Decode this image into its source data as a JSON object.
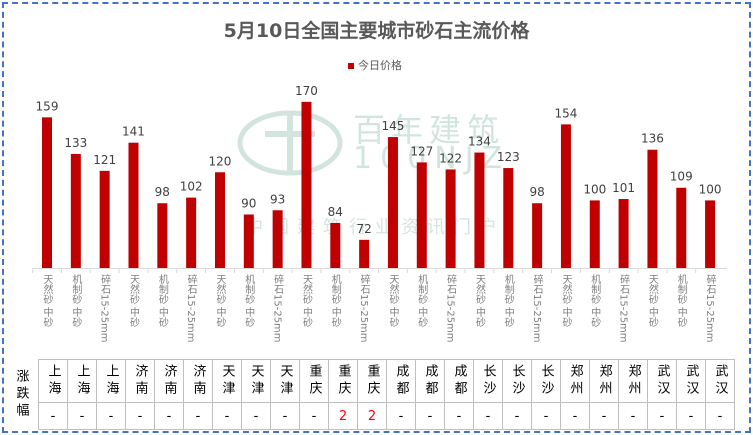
{
  "chart_data": {
    "type": "bar",
    "title": "5月10日全国主要城市砂石主流价格",
    "legend": "今日价格",
    "legend_position": "top",
    "bar_color": "#c00000",
    "categories": [
      "天然砂 中砂",
      "机制砂 中砂",
      "碎石15-25mm",
      "天然砂 中砂",
      "机制砂 中砂",
      "碎石15-25mm",
      "天然砂 中砂",
      "机制砂 中砂",
      "碎石15-25mm",
      "天然砂 中砂",
      "机制砂 中砂",
      "碎石15-25mm",
      "天然砂 中砂",
      "机制砂 中砂",
      "碎石15-25mm",
      "天然砂 中砂",
      "机制砂 中砂",
      "碎石15-25mm",
      "天然砂 中砂",
      "机制砂 中砂",
      "碎石15-25mm",
      "天然砂 中砂",
      "机制砂 中砂",
      "碎石15-25mm"
    ],
    "values": [
      159,
      133,
      121,
      141,
      98,
      102,
      120,
      90,
      93,
      170,
      84,
      72,
      145,
      127,
      122,
      134,
      123,
      98,
      154,
      100,
      101,
      136,
      109,
      100
    ],
    "ylim": [
      52,
      175
    ],
    "grid": false
  },
  "table": {
    "row_header": "涨跌幅",
    "cities": [
      "上海",
      "上海",
      "上海",
      "济南",
      "济南",
      "济南",
      "天津",
      "天津",
      "天津",
      "重庆",
      "重庆",
      "重庆",
      "成都",
      "成都",
      "成都",
      "长沙",
      "长沙",
      "长沙",
      "郑州",
      "郑州",
      "郑州",
      "武汉",
      "武汉",
      "武汉"
    ],
    "changes": [
      "-",
      "-",
      "-",
      "-",
      "-",
      "-",
      "-",
      "-",
      "-",
      "-",
      "2",
      "2",
      "-",
      "-",
      "-",
      "-",
      "-",
      "-",
      "-",
      "-",
      "-",
      "-",
      "-",
      "-"
    ]
  },
  "watermark": {
    "cn": "百年建筑",
    "en": "100NJZ",
    "tagline": "中国建筑行业资讯门户"
  }
}
